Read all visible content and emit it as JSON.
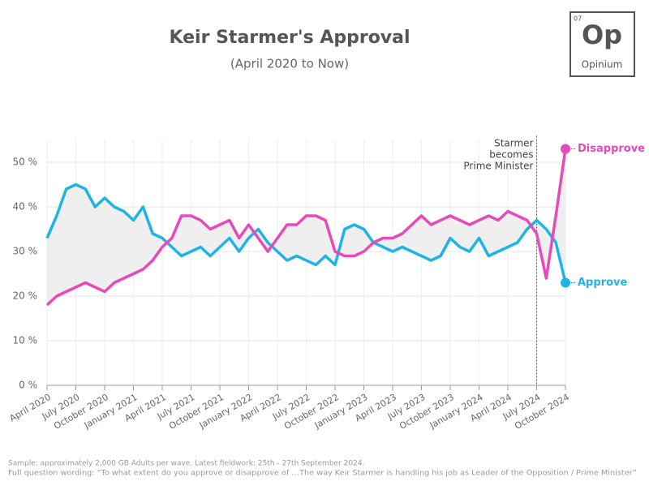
{
  "chart_data": {
    "type": "line",
    "title": "Keir Starmer's Approval",
    "subtitle": "(April 2020 to Now)",
    "logo": {
      "number": "07",
      "symbol": "Op",
      "name": "Opinium"
    },
    "x": [
      "2020-04",
      "2020-05",
      "2020-06",
      "2020-07",
      "2020-08",
      "2020-09",
      "2020-10",
      "2020-11",
      "2020-12",
      "2021-01",
      "2021-02",
      "2021-03",
      "2021-04",
      "2021-05",
      "2021-06",
      "2021-07",
      "2021-08",
      "2021-09",
      "2021-10",
      "2021-11",
      "2021-12",
      "2022-01",
      "2022-02",
      "2022-03",
      "2022-04",
      "2022-05",
      "2022-06",
      "2022-07",
      "2022-08",
      "2022-09",
      "2022-10",
      "2022-11",
      "2022-12",
      "2023-01",
      "2023-02",
      "2023-03",
      "2023-04",
      "2023-05",
      "2023-06",
      "2023-07",
      "2023-08",
      "2023-09",
      "2023-10",
      "2023-11",
      "2023-12",
      "2024-01",
      "2024-02",
      "2024-03",
      "2024-04",
      "2024-05",
      "2024-06",
      "2024-07",
      "2024-08",
      "2024-09",
      "2024-10"
    ],
    "series": [
      {
        "name": "Approve",
        "color": "#1fb4e4",
        "values": [
          33,
          38,
          44,
          45,
          44,
          40,
          42,
          40,
          39,
          37,
          40,
          34,
          33,
          31,
          29,
          30,
          31,
          29,
          31,
          33,
          30,
          33,
          35,
          32,
          30,
          28,
          29,
          28,
          27,
          29,
          27,
          35,
          36,
          35,
          32,
          31,
          30,
          31,
          30,
          29,
          28,
          29,
          33,
          31,
          30,
          33,
          29,
          30,
          31,
          32,
          35,
          37,
          35,
          32,
          23
        ]
      },
      {
        "name": "Disapprove",
        "color": "#e64bb9",
        "values": [
          18,
          20,
          21,
          22,
          23,
          22,
          21,
          23,
          24,
          25,
          26,
          28,
          31,
          33,
          38,
          38,
          37,
          35,
          36,
          37,
          33,
          36,
          33,
          30,
          33,
          36,
          36,
          38,
          38,
          37,
          30,
          29,
          29,
          30,
          32,
          33,
          33,
          34,
          36,
          38,
          36,
          37,
          38,
          37,
          36,
          37,
          38,
          37,
          39,
          38,
          37,
          34,
          24,
          38,
          53
        ]
      }
    ],
    "xlim": [
      "2020-04",
      "2024-10"
    ],
    "xticks": [
      {
        "value": "2020-04",
        "label": "April 2020"
      },
      {
        "value": "2020-07",
        "label": "July 2020"
      },
      {
        "value": "2020-10",
        "label": "October 2020"
      },
      {
        "value": "2021-01",
        "label": "January 2021"
      },
      {
        "value": "2021-04",
        "label": "April 2021"
      },
      {
        "value": "2021-07",
        "label": "July 2021"
      },
      {
        "value": "2021-10",
        "label": "October 2021"
      },
      {
        "value": "2022-01",
        "label": "January 2022"
      },
      {
        "value": "2022-04",
        "label": "April 2022"
      },
      {
        "value": "2022-07",
        "label": "July 2022"
      },
      {
        "value": "2022-10",
        "label": "October 2022"
      },
      {
        "value": "2023-01",
        "label": "January 2023"
      },
      {
        "value": "2023-04",
        "label": "April 2023"
      },
      {
        "value": "2023-07",
        "label": "July 2023"
      },
      {
        "value": "2023-10",
        "label": "October 2023"
      },
      {
        "value": "2024-01",
        "label": "January 2024"
      },
      {
        "value": "2024-04",
        "label": "April 2024"
      },
      {
        "value": "2024-07",
        "label": "July 2024"
      },
      {
        "value": "2024-10",
        "label": "October 2024"
      }
    ],
    "ylim": [
      0,
      55
    ],
    "yticks": [
      {
        "value": 0,
        "label": "0 %"
      },
      {
        "value": 10,
        "label": "10 %"
      },
      {
        "value": 20,
        "label": "20 %"
      },
      {
        "value": 30,
        "label": "30 %"
      },
      {
        "value": 40,
        "label": "40 %"
      },
      {
        "value": 50,
        "label": "50 %"
      }
    ],
    "grid": true,
    "annotation": {
      "x": "2024-07",
      "lines": [
        "Starmer",
        "becomes",
        "Prime Minister"
      ]
    },
    "notes": [
      "Sample: approximately 2,000 GB Adults per wave. Latest fieldwork: 25th - 27th September 2024.",
      "Full question wording: “To what extent do you approve or disapprove of …The way Keir Starmer is handling his job as Leader of the Opposition / Prime Minister”"
    ]
  }
}
